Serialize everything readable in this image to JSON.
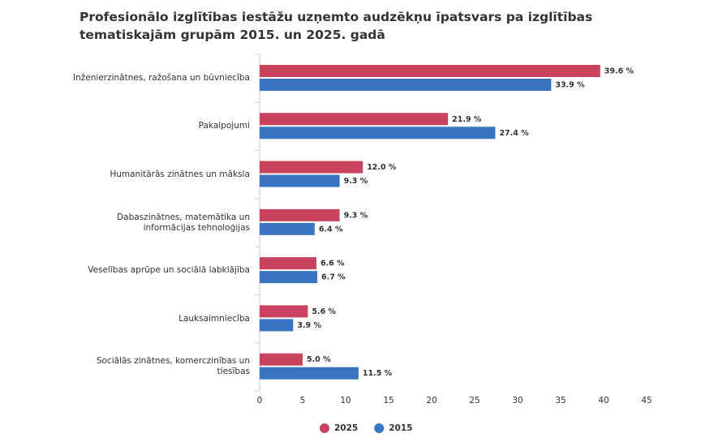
{
  "chart_data": {
    "type": "bar",
    "orientation": "horizontal",
    "title": "Profesionālo izglītības iestāžu uzņemto audzēkņu īpatsvars pa izglītības tematiskajām grupām 2015. un 2025. gadā",
    "categories": [
      "Inženierzinātnes, ražošana un būvniecība",
      "Pakalpojumi",
      "Humanitārās zinātnes un māksla",
      "Dabaszinātnes, matemātika un informācijas tehnoloģijas",
      "Veselības aprūpe un sociālā labklājība",
      "Lauksaimniecība",
      "Sociālās zinātnes, komerczinības un tiesības"
    ],
    "series": [
      {
        "name": "2025",
        "color": "#c9435f",
        "values": [
          39.6,
          21.9,
          12.0,
          9.3,
          6.6,
          5.6,
          5.0
        ],
        "value_labels": [
          "39.6 %",
          "21.9 %",
          "12.0 %",
          "9.3 %",
          "6.6 %",
          "5.6 %",
          "5.0 %"
        ]
      },
      {
        "name": "2015",
        "color": "#3a74c0",
        "values": [
          33.9,
          27.4,
          9.3,
          6.4,
          6.7,
          3.9,
          11.5
        ],
        "value_labels": [
          "33.9 %",
          "27.4 %",
          "9.3 %",
          "6.4 %",
          "6.7 %",
          "3.9 %",
          "11.5 %"
        ]
      }
    ],
    "xlim": [
      0,
      45
    ],
    "xticks": [
      0,
      5,
      10,
      15,
      20,
      25,
      30,
      35,
      40,
      45
    ],
    "legend": "bottom"
  }
}
